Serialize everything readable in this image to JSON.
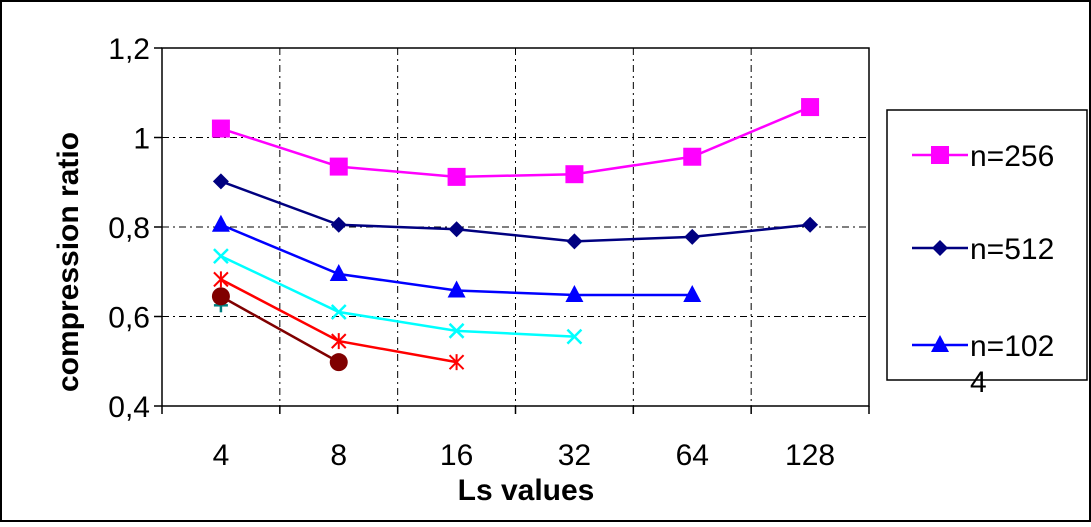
{
  "chart_data": {
    "type": "line",
    "title": "",
    "xlabel": "Ls values",
    "ylabel": "compression ratio",
    "categories": [
      "4",
      "8",
      "16",
      "32",
      "64",
      "128"
    ],
    "ylim": [
      0.4,
      1.2
    ],
    "yticks": [
      "0,4",
      "0,6",
      "0,8",
      "1",
      "1,2"
    ],
    "grid": true,
    "legend_position": "right",
    "series": [
      {
        "name": "n=256",
        "color": "#ff00ff",
        "marker": "square",
        "values": [
          1.02,
          0.935,
          0.912,
          0.918,
          0.957,
          1.068
        ]
      },
      {
        "name": "n=512",
        "color": "#000080",
        "marker": "diamond",
        "values": [
          0.902,
          0.805,
          0.795,
          0.768,
          0.778,
          0.805
        ]
      },
      {
        "name": "n=1024",
        "legend_lines": [
          "n=102",
          "4"
        ],
        "color": "#0000ff",
        "marker": "triangle",
        "values": [
          0.805,
          0.695,
          0.658,
          0.648,
          0.648,
          null
        ]
      },
      {
        "color": "#00ffff",
        "marker": "x",
        "values": [
          0.735,
          0.61,
          0.568,
          0.555,
          null,
          null
        ]
      },
      {
        "color": "#ff0000",
        "marker": "star",
        "values": [
          0.683,
          0.545,
          0.498,
          null,
          null,
          null
        ]
      },
      {
        "color": "#800000",
        "marker": "circle",
        "values": [
          0.645,
          0.498,
          null,
          null,
          null,
          null
        ]
      },
      {
        "color": "#008080",
        "marker": "plus",
        "values": [
          0.625,
          null,
          null,
          null,
          null,
          null
        ]
      }
    ]
  }
}
